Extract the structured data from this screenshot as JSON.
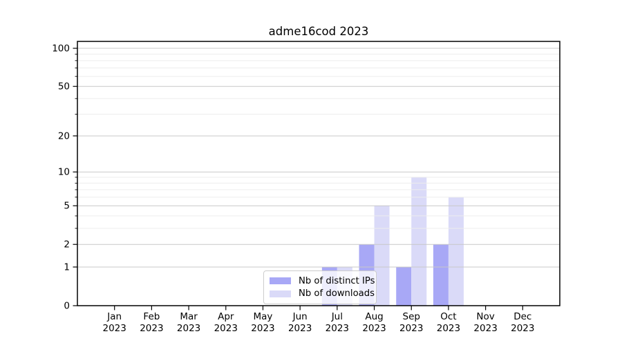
{
  "chart_data": {
    "type": "bar",
    "title": "adme16cod 2023",
    "categories": [
      "Jan",
      "Feb",
      "Mar",
      "Apr",
      "May",
      "Jun",
      "Jul",
      "Aug",
      "Sep",
      "Oct",
      "Nov",
      "Dec"
    ],
    "x_tick_second_line": "2023",
    "series": [
      {
        "name": "Nb of distinct IPs",
        "color": "#a8a8f6",
        "values": [
          0,
          0,
          0,
          0,
          0,
          0,
          1,
          2,
          1,
          2,
          0,
          0
        ]
      },
      {
        "name": "Nb of downloads",
        "color": "#dadaf8",
        "values": [
          0,
          0,
          0,
          0,
          0,
          0,
          1,
          5,
          9,
          6,
          0,
          0
        ]
      }
    ],
    "xlabel": "",
    "ylabel": "",
    "yscale": "log1p",
    "ylim": [
      0,
      113
    ],
    "yticks_major": [
      0,
      1,
      2,
      5,
      10,
      20,
      50,
      100
    ],
    "yticks_minor": [
      3,
      4,
      6,
      7,
      8,
      9,
      30,
      40,
      60,
      70,
      80,
      90
    ],
    "grid": "horizontal",
    "legend_position": "lower center"
  },
  "colors": {
    "spine": "#000000",
    "grid_major": "#c8c8c8",
    "grid_minor": "#ededed",
    "tick_text": "#000000",
    "legend_border": "#cccccc"
  }
}
